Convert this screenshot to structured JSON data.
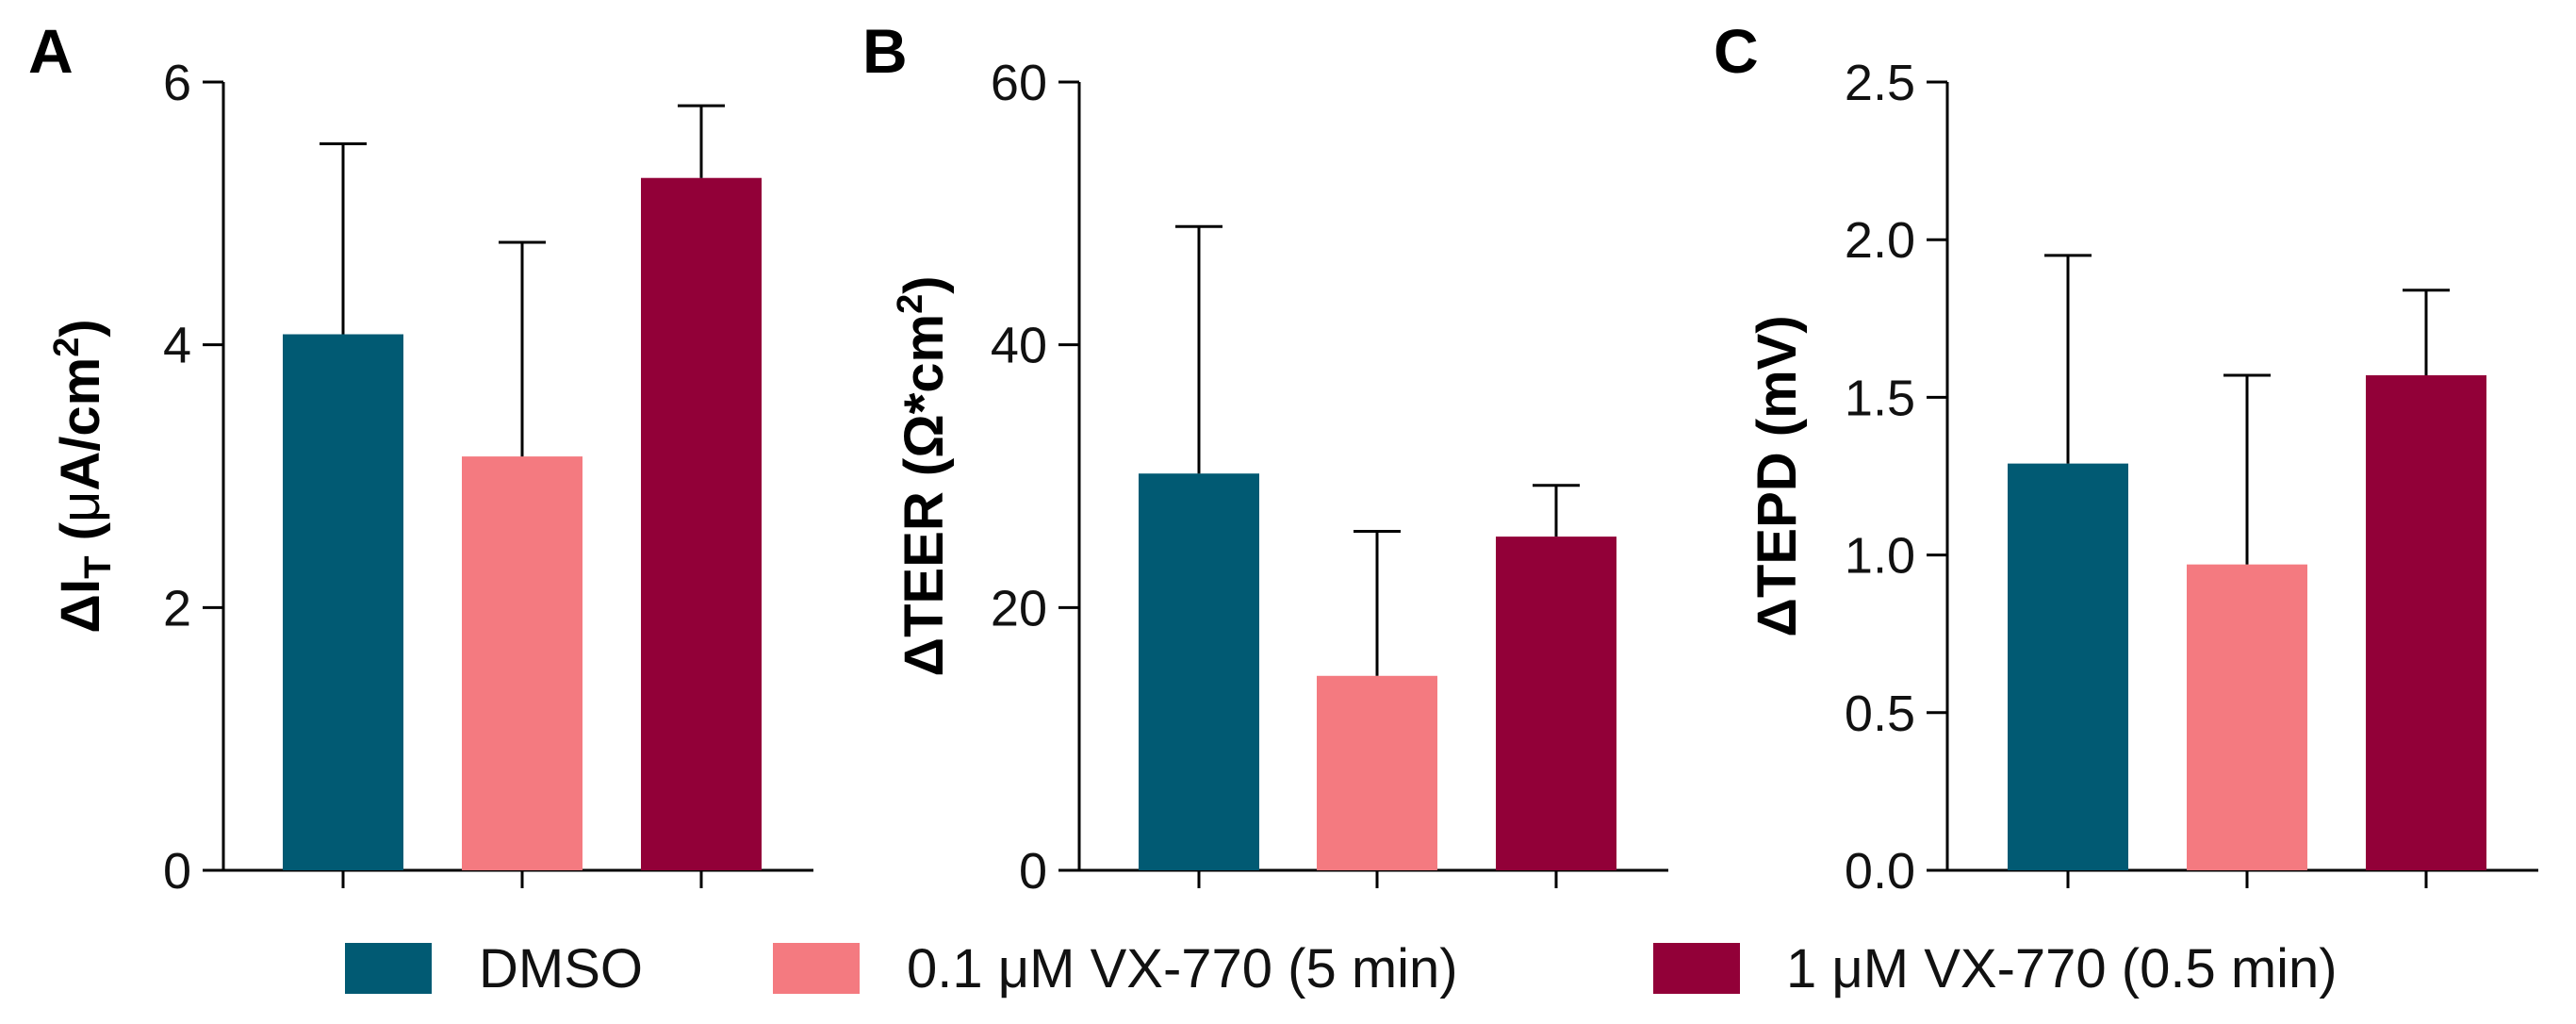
{
  "colors": {
    "dmso": "#015a73",
    "vx_01": "#f47a80",
    "vx_1": "#920038",
    "axis": "#000000"
  },
  "legend": [
    {
      "label": "DMSO",
      "color": "#015a73"
    },
    {
      "label": "0.1 μM VX-770 (5 min)",
      "color": "#f47a80"
    },
    {
      "label": "1 μM VX-770 (0.5 min)",
      "color": "#920038"
    }
  ],
  "chart_data": [
    {
      "type": "bar",
      "panel": "A",
      "categories": [
        "DMSO",
        "0.1 μM VX-770 (5 min)",
        "1 μM VX-770 (0.5 min)"
      ],
      "values": [
        4.08,
        3.15,
        5.27
      ],
      "errors": [
        1.45,
        1.63,
        0.55
      ],
      "ylabel_parts": [
        "ΔI",
        "T",
        " (",
        "μ",
        "A/cm",
        "2",
        ")"
      ],
      "ylim": [
        0,
        6
      ],
      "yticks": [
        0,
        2,
        4,
        6
      ],
      "ytick_labels": [
        "0",
        "2",
        "4",
        "6"
      ]
    },
    {
      "type": "bar",
      "panel": "B",
      "categories": [
        "DMSO",
        "0.1 μM VX-770 (5 min)",
        "1 μM VX-770 (0.5 min)"
      ],
      "values": [
        30.2,
        14.8,
        25.4
      ],
      "errors": [
        18.8,
        11.0,
        3.9
      ],
      "ylabel_parts": [
        "ΔTEER (Ω*cm",
        "2",
        ")"
      ],
      "ylim": [
        0,
        60
      ],
      "yticks": [
        0,
        20,
        40,
        60
      ],
      "ytick_labels": [
        "0",
        "20",
        "40",
        "60"
      ]
    },
    {
      "type": "bar",
      "panel": "C",
      "categories": [
        "DMSO",
        "0.1 μM VX-770 (5 min)",
        "1 μM VX-770 (0.5 min)"
      ],
      "values": [
        1.29,
        0.97,
        1.57
      ],
      "errors": [
        0.66,
        0.6,
        0.27
      ],
      "ylabel_parts": [
        "ΔTEPD (mV)"
      ],
      "ylim": [
        0,
        2.5
      ],
      "yticks": [
        0,
        0.5,
        1.0,
        1.5,
        2.0,
        2.5
      ],
      "ytick_labels": [
        "0.0",
        "0.5",
        "1.0",
        "1.5",
        "2.0",
        "2.5"
      ]
    }
  ]
}
